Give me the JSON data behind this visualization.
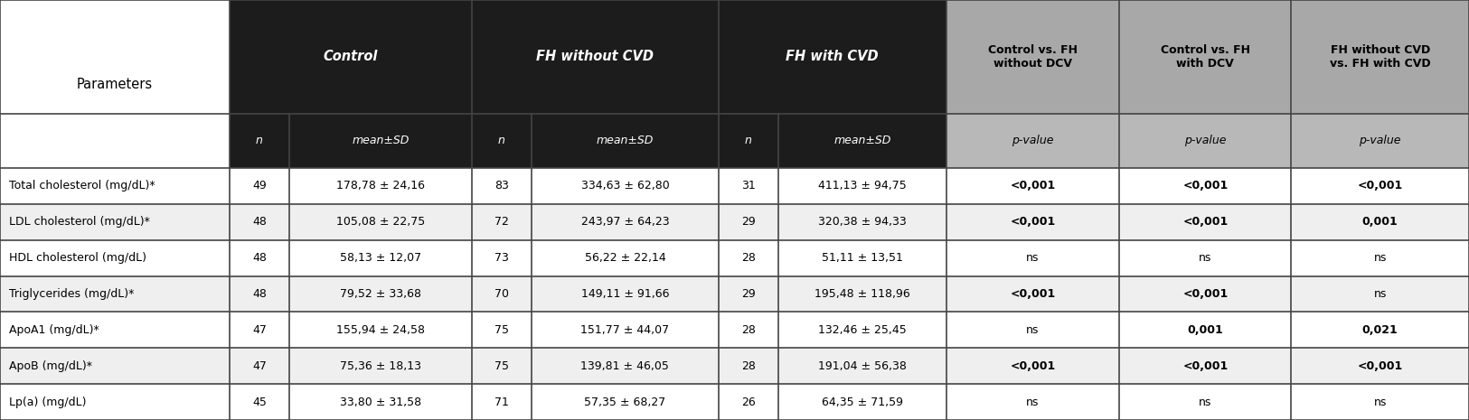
{
  "param_header": "Parameters",
  "col_headers_dark": [
    "Control",
    "FH without CVD",
    "FH with CVD"
  ],
  "col_headers_gray": [
    "Control vs. FH\nwithout DCV",
    "Control vs. FH\nwith DCV",
    "FH without CVD\nvs. FH with CVD"
  ],
  "rows": [
    {
      "param": "Total cholesterol (mg/dL)*",
      "n1": "49",
      "mean1": "178,78 ± 24,16",
      "n2": "83",
      "mean2": "334,63 ± 62,80",
      "n3": "31",
      "mean3": "411,13 ± 94,75",
      "p1": "<0,001",
      "p2": "<0,001",
      "p3": "<0,001",
      "p1_bold": true,
      "p2_bold": true,
      "p3_bold": true
    },
    {
      "param": "LDL cholesterol (mg/dL)*",
      "n1": "48",
      "mean1": "105,08 ± 22,75",
      "n2": "72",
      "mean2": "243,97 ± 64,23",
      "n3": "29",
      "mean3": "320,38 ± 94,33",
      "p1": "<0,001",
      "p2": "<0,001",
      "p3": "0,001",
      "p1_bold": true,
      "p2_bold": true,
      "p3_bold": true
    },
    {
      "param": "HDL cholesterol (mg/dL)",
      "n1": "48",
      "mean1": "58,13 ± 12,07",
      "n2": "73",
      "mean2": "56,22 ± 22,14",
      "n3": "28",
      "mean3": "51,11 ± 13,51",
      "p1": "ns",
      "p2": "ns",
      "p3": "ns",
      "p1_bold": false,
      "p2_bold": false,
      "p3_bold": false
    },
    {
      "param": "Triglycerides (mg/dL)*",
      "n1": "48",
      "mean1": "79,52 ± 33,68",
      "n2": "70",
      "mean2": "149,11 ± 91,66",
      "n3": "29",
      "mean3": "195,48 ± 118,96",
      "p1": "<0,001",
      "p2": "<0,001",
      "p3": "ns",
      "p1_bold": true,
      "p2_bold": true,
      "p3_bold": false
    },
    {
      "param": "ApoA1 (mg/dL)*",
      "n1": "47",
      "mean1": "155,94 ± 24,58",
      "n2": "75",
      "mean2": "151,77 ± 44,07",
      "n3": "28",
      "mean3": "132,46 ± 25,45",
      "p1": "ns",
      "p2": "0,001",
      "p3": "0,021",
      "p1_bold": false,
      "p2_bold": true,
      "p3_bold": true
    },
    {
      "param": "ApoB (mg/dL)*",
      "n1": "47",
      "mean1": "75,36 ± 18,13",
      "n2": "75",
      "mean2": "139,81 ± 46,05",
      "n3": "28",
      "mean3": "191,04 ± 56,38",
      "p1": "<0,001",
      "p2": "<0,001",
      "p3": "<0,001",
      "p1_bold": true,
      "p2_bold": true,
      "p3_bold": true
    },
    {
      "param": "Lp(a) (mg/dL)",
      "n1": "45",
      "mean1": "33,80 ± 31,58",
      "n2": "71",
      "mean2": "57,35 ± 68,27",
      "n3": "26",
      "mean3": "64,35 ± 71,59",
      "p1": "ns",
      "p2": "ns",
      "p3": "ns",
      "p1_bold": false,
      "p2_bold": false,
      "p3_bold": false
    }
  ],
  "color_dark": "#1c1c1c",
  "color_gray": "#a8a8a8",
  "color_gray_sub": "#b8b8b8",
  "color_row_odd": "#efefef",
  "color_row_even": "#ffffff",
  "color_border": "#444444",
  "border_lw": 1.2,
  "fontsize_header": 10.5,
  "fontsize_sub": 9.0,
  "fontsize_body": 9.0
}
